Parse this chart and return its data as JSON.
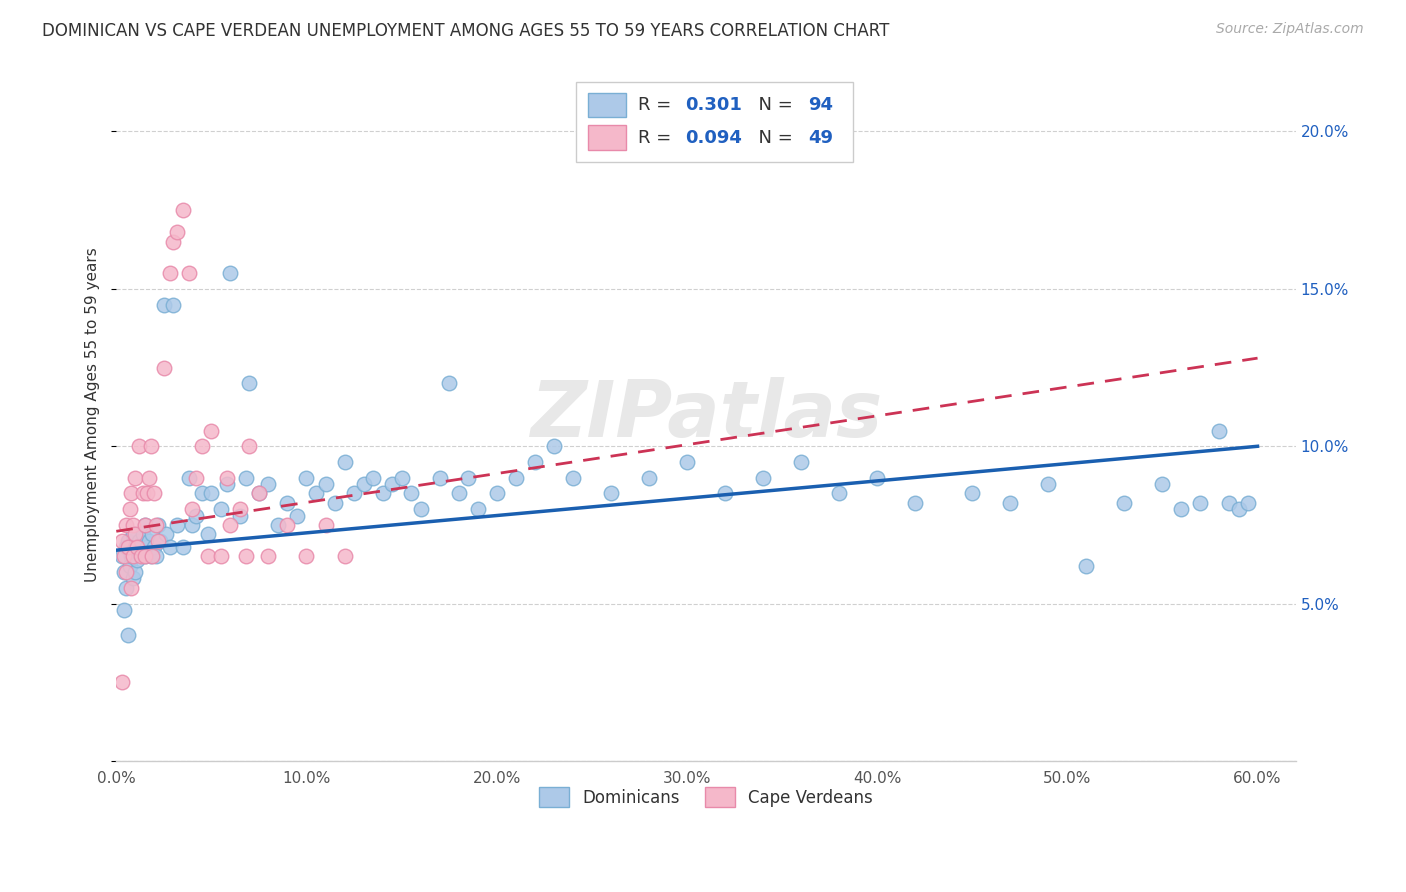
{
  "title": "DOMINICAN VS CAPE VERDEAN UNEMPLOYMENT AMONG AGES 55 TO 59 YEARS CORRELATION CHART",
  "source": "Source: ZipAtlas.com",
  "ylabel": "Unemployment Among Ages 55 to 59 years",
  "xlim": [
    0.0,
    0.62
  ],
  "ylim": [
    0.0,
    0.22
  ],
  "xticks": [
    0.0,
    0.1,
    0.2,
    0.3,
    0.4,
    0.5,
    0.6
  ],
  "xticklabels": [
    "0.0%",
    "10.0%",
    "20.0%",
    "30.0%",
    "40.0%",
    "50.0%",
    "60.0%"
  ],
  "yticks": [
    0.0,
    0.05,
    0.1,
    0.15,
    0.2
  ],
  "yticklabels_right": [
    "",
    "5.0%",
    "10.0%",
    "15.0%",
    "20.0%"
  ],
  "dominican_color": "#adc9e8",
  "capeverdean_color": "#f5b8ca",
  "dominican_edge": "#7aafd4",
  "capeverdean_edge": "#e88aaa",
  "line_dominican_color": "#1a5fb0",
  "line_capeverdean_color": "#cc3355",
  "R_dominican": 0.301,
  "N_dominican": 94,
  "R_capeverdean": 0.094,
  "N_capeverdean": 49,
  "legend_label_dominican": "Dominicans",
  "legend_label_capeverdean": "Cape Verdeans",
  "watermark": "ZIPatlas",
  "background_color": "#ffffff",
  "grid_color": "#d0d0d0",
  "text_color": "#333333",
  "blue_color": "#2060c0",
  "title_fontsize": 12,
  "axis_label_fontsize": 11,
  "tick_fontsize": 11,
  "dominican_x": [
    0.003,
    0.004,
    0.005,
    0.005,
    0.006,
    0.007,
    0.008,
    0.009,
    0.009,
    0.01,
    0.01,
    0.011,
    0.012,
    0.013,
    0.014,
    0.015,
    0.015,
    0.016,
    0.017,
    0.018,
    0.019,
    0.02,
    0.021,
    0.022,
    0.023,
    0.025,
    0.026,
    0.028,
    0.03,
    0.032,
    0.035,
    0.038,
    0.04,
    0.042,
    0.045,
    0.048,
    0.05,
    0.055,
    0.058,
    0.06,
    0.065,
    0.068,
    0.07,
    0.075,
    0.08,
    0.085,
    0.09,
    0.095,
    0.1,
    0.105,
    0.11,
    0.115,
    0.12,
    0.125,
    0.13,
    0.135,
    0.14,
    0.145,
    0.15,
    0.155,
    0.16,
    0.17,
    0.175,
    0.18,
    0.185,
    0.19,
    0.2,
    0.21,
    0.22,
    0.23,
    0.24,
    0.26,
    0.28,
    0.3,
    0.32,
    0.34,
    0.36,
    0.38,
    0.4,
    0.42,
    0.45,
    0.47,
    0.49,
    0.51,
    0.53,
    0.55,
    0.56,
    0.57,
    0.58,
    0.585,
    0.59,
    0.595,
    0.004,
    0.006
  ],
  "dominican_y": [
    0.065,
    0.06,
    0.068,
    0.055,
    0.07,
    0.062,
    0.065,
    0.058,
    0.072,
    0.06,
    0.068,
    0.064,
    0.07,
    0.066,
    0.072,
    0.065,
    0.075,
    0.068,
    0.07,
    0.065,
    0.072,
    0.068,
    0.065,
    0.075,
    0.07,
    0.145,
    0.072,
    0.068,
    0.145,
    0.075,
    0.068,
    0.09,
    0.075,
    0.078,
    0.085,
    0.072,
    0.085,
    0.08,
    0.088,
    0.155,
    0.078,
    0.09,
    0.12,
    0.085,
    0.088,
    0.075,
    0.082,
    0.078,
    0.09,
    0.085,
    0.088,
    0.082,
    0.095,
    0.085,
    0.088,
    0.09,
    0.085,
    0.088,
    0.09,
    0.085,
    0.08,
    0.09,
    0.12,
    0.085,
    0.09,
    0.08,
    0.085,
    0.09,
    0.095,
    0.1,
    0.09,
    0.085,
    0.09,
    0.095,
    0.085,
    0.09,
    0.095,
    0.085,
    0.09,
    0.082,
    0.085,
    0.082,
    0.088,
    0.062,
    0.082,
    0.088,
    0.08,
    0.082,
    0.105,
    0.082,
    0.08,
    0.082,
    0.048,
    0.04
  ],
  "capeverdean_x": [
    0.003,
    0.004,
    0.005,
    0.005,
    0.006,
    0.007,
    0.008,
    0.008,
    0.009,
    0.009,
    0.01,
    0.01,
    0.011,
    0.012,
    0.013,
    0.014,
    0.015,
    0.015,
    0.016,
    0.017,
    0.018,
    0.019,
    0.02,
    0.021,
    0.022,
    0.025,
    0.028,
    0.03,
    0.032,
    0.035,
    0.038,
    0.04,
    0.042,
    0.045,
    0.048,
    0.05,
    0.055,
    0.058,
    0.06,
    0.065,
    0.068,
    0.07,
    0.075,
    0.08,
    0.09,
    0.1,
    0.11,
    0.12,
    0.003
  ],
  "capeverdean_y": [
    0.07,
    0.065,
    0.075,
    0.06,
    0.068,
    0.08,
    0.055,
    0.085,
    0.065,
    0.075,
    0.072,
    0.09,
    0.068,
    0.1,
    0.065,
    0.085,
    0.075,
    0.065,
    0.085,
    0.09,
    0.1,
    0.065,
    0.085,
    0.075,
    0.07,
    0.125,
    0.155,
    0.165,
    0.168,
    0.175,
    0.155,
    0.08,
    0.09,
    0.1,
    0.065,
    0.105,
    0.065,
    0.09,
    0.075,
    0.08,
    0.065,
    0.1,
    0.085,
    0.065,
    0.075,
    0.065,
    0.075,
    0.065,
    0.025
  ],
  "dom_line_x0": 0.0,
  "dom_line_x1": 0.6,
  "dom_line_y0": 0.067,
  "dom_line_y1": 0.1,
  "cv_line_x0": 0.0,
  "cv_line_x1": 0.6,
  "cv_line_y0": 0.073,
  "cv_line_y1": 0.128
}
